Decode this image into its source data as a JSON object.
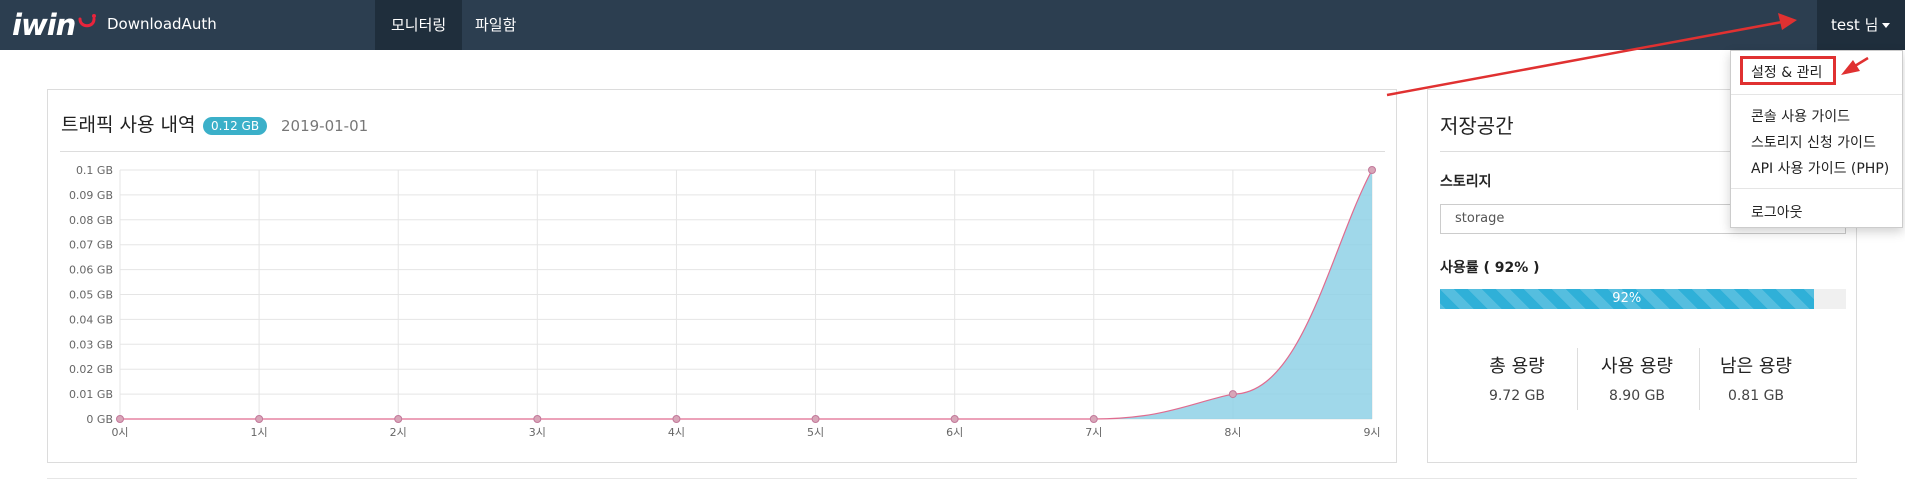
{
  "navbar": {
    "logo_text": "iwin",
    "brand": "DownloadAuth",
    "items": [
      {
        "label": "모니터링",
        "active": true
      },
      {
        "label": "파일함",
        "active": false
      }
    ],
    "user_label": "test 님"
  },
  "traffic": {
    "title": "트래픽 사용 내역",
    "badge": "0.12 GB",
    "date": "2019-01-01"
  },
  "chart_data": {
    "type": "area",
    "x": [
      "0시",
      "1시",
      "2시",
      "3시",
      "4시",
      "5시",
      "6시",
      "7시",
      "8시",
      "9시"
    ],
    "values": [
      0,
      0,
      0,
      0,
      0,
      0,
      0,
      0,
      0.01,
      0.1
    ],
    "yticks": [
      "0 GB",
      "0.01 GB",
      "0.02 GB",
      "0.03 GB",
      "0.04 GB",
      "0.05 GB",
      "0.06 GB",
      "0.07 GB",
      "0.08 GB",
      "0.09 GB",
      "0.1 GB"
    ],
    "ylim": [
      0,
      0.1
    ],
    "grid": true,
    "fill_color": "#8fd1e6",
    "line_color": "#e06b8f"
  },
  "storage": {
    "title": "저장공간",
    "label": "스토리지",
    "select_value": "storage",
    "usage_label": "사용률 ( 92% )",
    "usage_percent": 92,
    "usage_text": "92%",
    "stats": [
      {
        "label": "총 용량",
        "value": "9.72 GB"
      },
      {
        "label": "사용 용량",
        "value": "8.90 GB"
      },
      {
        "label": "남은 용량",
        "value": "0.81 GB"
      }
    ]
  },
  "dropdown": {
    "items": [
      "설정 & 관리",
      "콘솔 사용 가이드",
      "스토리지 신청 가이드",
      "API 사용 가이드 (PHP)",
      "로그아웃"
    ]
  },
  "colors": {
    "navbar": "#2c3e50",
    "accent": "#3bb0c9",
    "annotation": "#e03131"
  }
}
